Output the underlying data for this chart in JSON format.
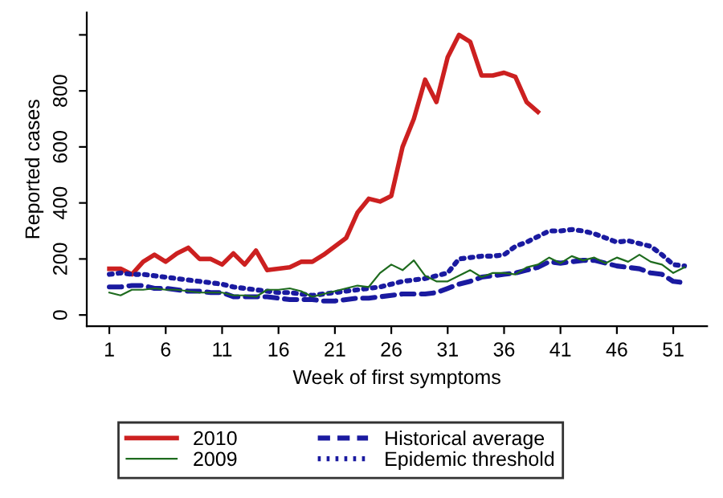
{
  "chart_data": {
    "type": "line",
    "xlabel": "Week of first symptoms",
    "ylabel": "Reported cases",
    "x": [
      1,
      2,
      3,
      4,
      5,
      6,
      7,
      8,
      9,
      10,
      11,
      12,
      13,
      14,
      15,
      16,
      17,
      18,
      19,
      20,
      21,
      22,
      23,
      24,
      25,
      26,
      27,
      28,
      29,
      30,
      31,
      32,
      33,
      34,
      35,
      36,
      37,
      38,
      39,
      40,
      41,
      42,
      43,
      44,
      45,
      46,
      47,
      48,
      49,
      50,
      51,
      52
    ],
    "series": [
      {
        "name": "2010",
        "color": "#cc2020",
        "line_style": "solid",
        "values": [
          165,
          165,
          145,
          190,
          215,
          190,
          220,
          240,
          200,
          200,
          180,
          220,
          180,
          230,
          160,
          165,
          170,
          190,
          190,
          215,
          245,
          275,
          365,
          415,
          405,
          425,
          600,
          700,
          840,
          760,
          920,
          1000,
          975,
          855,
          855,
          865,
          850,
          760,
          725,
          null,
          null,
          null,
          null,
          null,
          null,
          null,
          null,
          null,
          null,
          null,
          null,
          null
        ]
      },
      {
        "name": "2009",
        "color": "#1e6b1e",
        "line_style": "solid",
        "values": [
          80,
          70,
          90,
          90,
          95,
          90,
          90,
          85,
          80,
          80,
          80,
          70,
          70,
          65,
          90,
          90,
          95,
          85,
          65,
          75,
          85,
          95,
          105,
          100,
          150,
          180,
          160,
          195,
          140,
          120,
          120,
          140,
          160,
          135,
          150,
          150,
          145,
          170,
          180,
          205,
          185,
          210,
          195,
          205,
          185,
          205,
          190,
          215,
          190,
          180,
          150,
          170
        ]
      },
      {
        "name": "Historical average",
        "color": "#1a1aa0",
        "line_style": "dashed",
        "values": [
          100,
          100,
          105,
          105,
          95,
          95,
          90,
          85,
          85,
          80,
          80,
          65,
          65,
          65,
          65,
          60,
          55,
          55,
          55,
          50,
          50,
          55,
          60,
          60,
          65,
          70,
          75,
          75,
          75,
          80,
          95,
          110,
          120,
          135,
          140,
          145,
          150,
          160,
          170,
          190,
          185,
          190,
          195,
          195,
          185,
          175,
          170,
          165,
          150,
          145,
          120,
          115
        ]
      },
      {
        "name": "Epidemic threshold",
        "color": "#1a1aa0",
        "line_style": "dotted",
        "values": [
          145,
          150,
          145,
          145,
          140,
          135,
          130,
          125,
          120,
          115,
          110,
          100,
          95,
          90,
          85,
          80,
          80,
          75,
          70,
          75,
          80,
          85,
          90,
          95,
          100,
          110,
          120,
          125,
          130,
          140,
          150,
          200,
          205,
          210,
          210,
          215,
          245,
          260,
          280,
          300,
          300,
          305,
          300,
          290,
          275,
          260,
          265,
          255,
          245,
          215,
          180,
          175
        ]
      }
    ],
    "xlim": [
      -1,
      54
    ],
    "xticks": [
      1,
      6,
      11,
      16,
      21,
      26,
      31,
      36,
      41,
      46,
      51
    ],
    "ylim": [
      -40,
      1080
    ],
    "yticks": [
      0,
      200,
      400,
      600,
      800,
      {
        "value": 1000,
        "label": null
      }
    ],
    "grid": false,
    "legend": "bottom",
    "marker": "none"
  }
}
